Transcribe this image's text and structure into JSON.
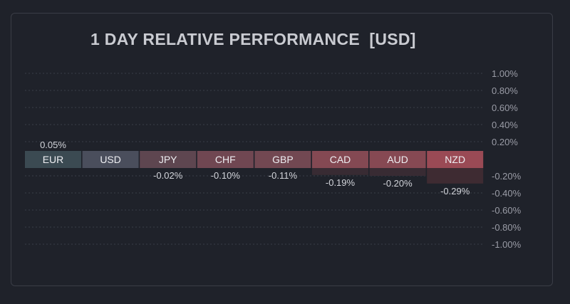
{
  "widget": {
    "title": "1 DAY RELATIVE PERFORMANCE  [USD]"
  },
  "chart_data": {
    "type": "bar",
    "title": "1 DAY RELATIVE PERFORMANCE  [USD]",
    "categories": [
      "EUR",
      "USD",
      "JPY",
      "CHF",
      "GBP",
      "CAD",
      "AUD",
      "NZD"
    ],
    "values": [
      0.05,
      0,
      -0.02,
      -0.1,
      -0.11,
      -0.19,
      -0.2,
      -0.29
    ],
    "value_labels": [
      "0.05%",
      "",
      "-0.02%",
      "-0.10%",
      "-0.11%",
      "-0.19%",
      "-0.20%",
      "-0.29%"
    ],
    "ylim": [
      -1.0,
      1.0
    ],
    "y_ticks": [
      1.0,
      0.8,
      0.6,
      0.4,
      0.2,
      -0.2,
      -0.4,
      -0.6,
      -0.8,
      -1.0
    ],
    "y_tick_labels": [
      "1.00%",
      "0.80%",
      "0.60%",
      "0.40%",
      "0.20%",
      "-0.20%",
      "-0.40%",
      "-0.60%",
      "-0.80%",
      "-1.00%"
    ],
    "yaxis_position": "right",
    "grid": true,
    "colors": {
      "background": "#1f222a",
      "grid": "#3a3e48",
      "tick_label": "#9a9ca6",
      "value_label": "#d2d4da",
      "bar_text": "#eeeef2",
      "neutral_label_bg": "#4a4e5c",
      "positive_label_bg": "#3b4a52",
      "positive_bar": "#343d44",
      "negative_label_scale": [
        "#5a4650",
        "#9a4a55"
      ],
      "negative_bar_scale": [
        "#2c2b34",
        "#3e2b32"
      ]
    }
  }
}
